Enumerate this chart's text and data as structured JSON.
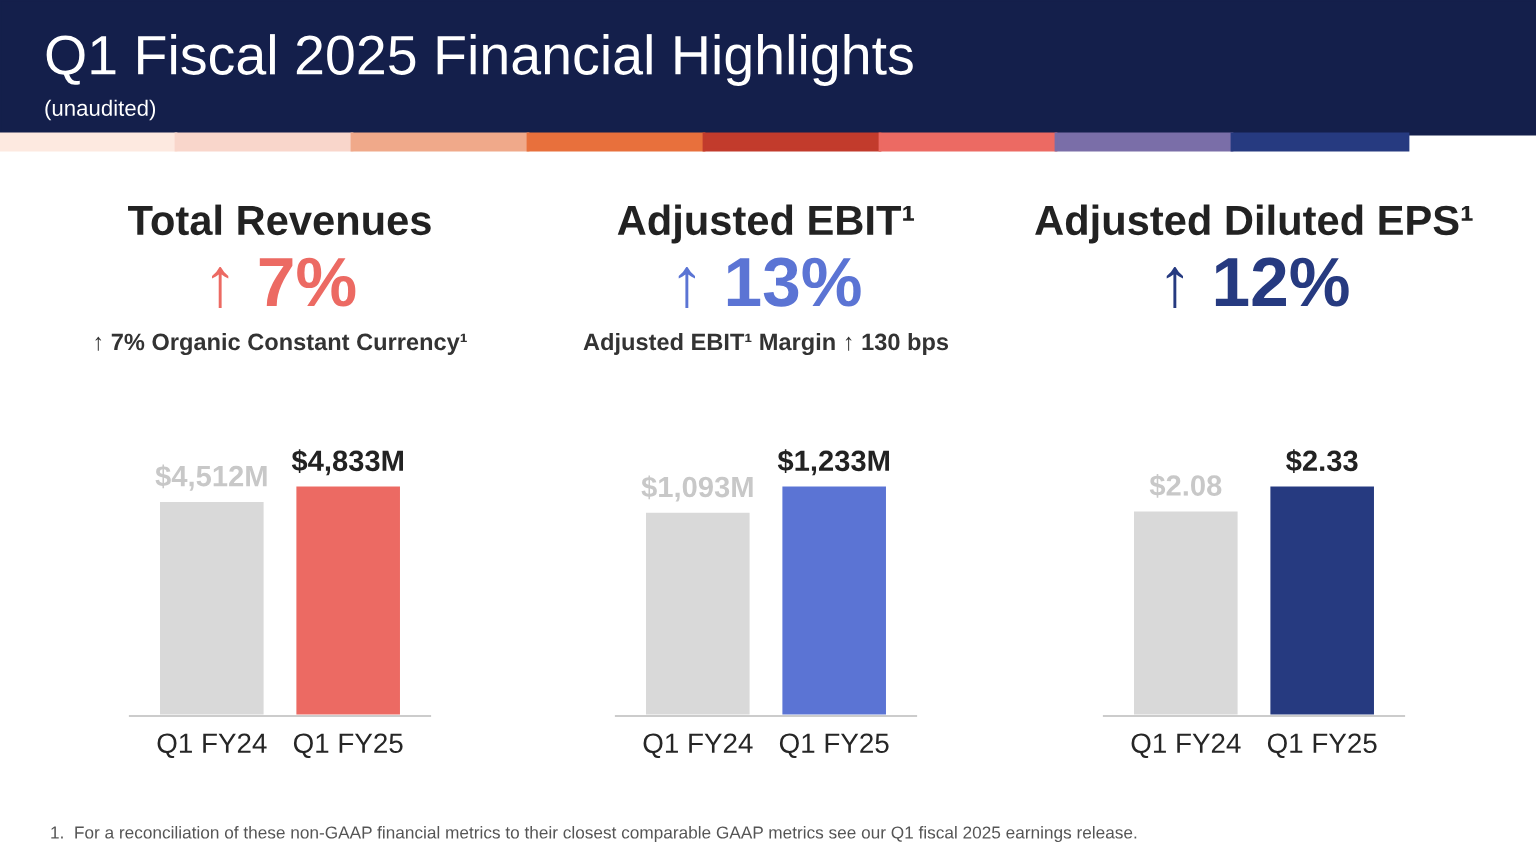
{
  "chart_data": [
    {
      "type": "other",
      "title": "Q1 Fiscal 2025 Financial Highlights",
      "subtitle": "(unaudited)",
      "annotations": [
        "1.  For a reconciliation of these non-GAAP financial metrics to their closest comparable GAAP metrics see our Q1 fiscal 2025 earnings release."
      ]
    },
    {
      "type": "bar",
      "title": "Total Revenues",
      "subtitle": "↑ 7%",
      "annotations": [
        "↑ 7% Organic Constant Currency¹"
      ],
      "categories": [
        "Q1 FY24",
        "Q1 FY25"
      ],
      "values": [
        4512,
        4833
      ],
      "value_labels": [
        "$4,512M",
        "$4,833M"
      ],
      "colors": [
        "#d9d9d9",
        "#ec6a63"
      ],
      "tick_labels": "x"
    },
    {
      "type": "bar",
      "title": "Adjusted EBIT¹",
      "subtitle": "↑ 13%",
      "annotations": [
        "Adjusted EBIT¹ Margin ↑ 130 bps"
      ],
      "categories": [
        "Q1 FY24",
        "Q1 FY25"
      ],
      "values": [
        1093,
        1233
      ],
      "value_labels": [
        "$1,093M",
        "$1,233M"
      ],
      "colors": [
        "#d9d9d9",
        "#5b74d4"
      ],
      "tick_labels": "x"
    },
    {
      "type": "bar",
      "title": "Adjusted Diluted EPS¹",
      "subtitle": "↑ 12%",
      "categories": [
        "Q1 FY24",
        "Q1 FY25"
      ],
      "values": [
        2.08,
        2.33
      ],
      "value_labels": [
        "$2.08",
        "$2.33"
      ],
      "colors": [
        "#d9d9d9",
        "#263a80"
      ],
      "tick_labels": "x"
    }
  ]
}
